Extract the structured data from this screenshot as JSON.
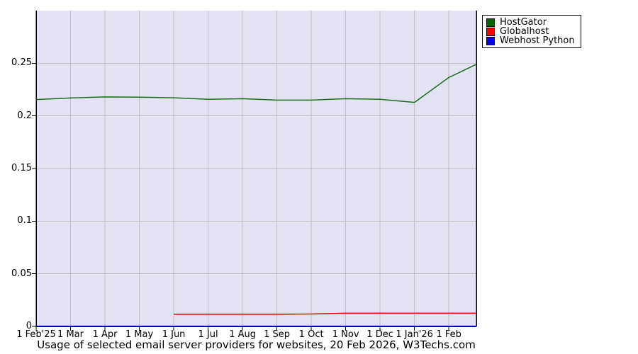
{
  "chart_data": {
    "type": "line",
    "title": "Usage of selected email server providers for websites, 20 Feb 2026, W3Techs.com",
    "xlabel": "",
    "ylabel": "",
    "x_unit": "months since 1 Feb 2025",
    "xlim": [
      0,
      12.8
    ],
    "ylim": [
      0,
      0.3
    ],
    "grid": true,
    "legend_position": "top-right",
    "colors": {
      "page_background": "#ffffff",
      "plot_background": "#e2e2f2",
      "grid": "#c0c0c0",
      "axis": "#000000",
      "baseline_blue": "#0000cc"
    },
    "x_ticks": [
      {
        "pos": 0,
        "label": "1 Feb'25"
      },
      {
        "pos": 1,
        "label": "1 Mar"
      },
      {
        "pos": 2,
        "label": "1 Apr"
      },
      {
        "pos": 3,
        "label": "1 May"
      },
      {
        "pos": 4,
        "label": "1 Jun"
      },
      {
        "pos": 5,
        "label": "1 Jul"
      },
      {
        "pos": 6,
        "label": "1 Aug"
      },
      {
        "pos": 7,
        "label": "1 Sep"
      },
      {
        "pos": 8,
        "label": "1 Oct"
      },
      {
        "pos": 9,
        "label": "1 Nov"
      },
      {
        "pos": 10,
        "label": "1 Dec"
      },
      {
        "pos": 11,
        "label": "1 Jan'26"
      },
      {
        "pos": 12,
        "label": "1 Feb"
      }
    ],
    "y_ticks": [
      {
        "pos": 0,
        "label": "0"
      },
      {
        "pos": 0.05,
        "label": "0.05"
      },
      {
        "pos": 0.1,
        "label": "0.1"
      },
      {
        "pos": 0.15,
        "label": "0.15"
      },
      {
        "pos": 0.2,
        "label": "0.2"
      },
      {
        "pos": 0.25,
        "label": "0.25"
      }
    ],
    "series": [
      {
        "name": "HostGator",
        "line_color": "#1b6e1b",
        "legend_color": "#006600",
        "line_width": 1.5,
        "points": [
          [
            0,
            0.2155
          ],
          [
            1,
            0.217
          ],
          [
            2,
            0.218
          ],
          [
            3,
            0.2178
          ],
          [
            4,
            0.2172
          ],
          [
            5,
            0.2158
          ],
          [
            6,
            0.2163
          ],
          [
            7,
            0.215
          ],
          [
            8,
            0.215
          ],
          [
            9,
            0.2163
          ],
          [
            10,
            0.2158
          ],
          [
            11,
            0.2128
          ],
          [
            12,
            0.2365
          ],
          [
            12.8,
            0.249
          ]
        ]
      },
      {
        "name": "Globalhost",
        "line_color": "#e60000",
        "legend_color": "#ff0000",
        "line_width": 1.5,
        "points": [
          [
            4,
            0.0115
          ],
          [
            5,
            0.0115
          ],
          [
            6,
            0.0115
          ],
          [
            7,
            0.0115
          ],
          [
            8,
            0.0118
          ],
          [
            9,
            0.0125
          ],
          [
            10,
            0.0125
          ],
          [
            11,
            0.0125
          ],
          [
            12,
            0.0125
          ],
          [
            12.8,
            0.0125
          ]
        ]
      },
      {
        "name": "Webhost Python",
        "line_color": "#0000cc",
        "legend_color": "#0000ff",
        "line_width": 2,
        "points": [
          [
            0,
            0
          ],
          [
            12.8,
            0
          ]
        ]
      }
    ]
  }
}
